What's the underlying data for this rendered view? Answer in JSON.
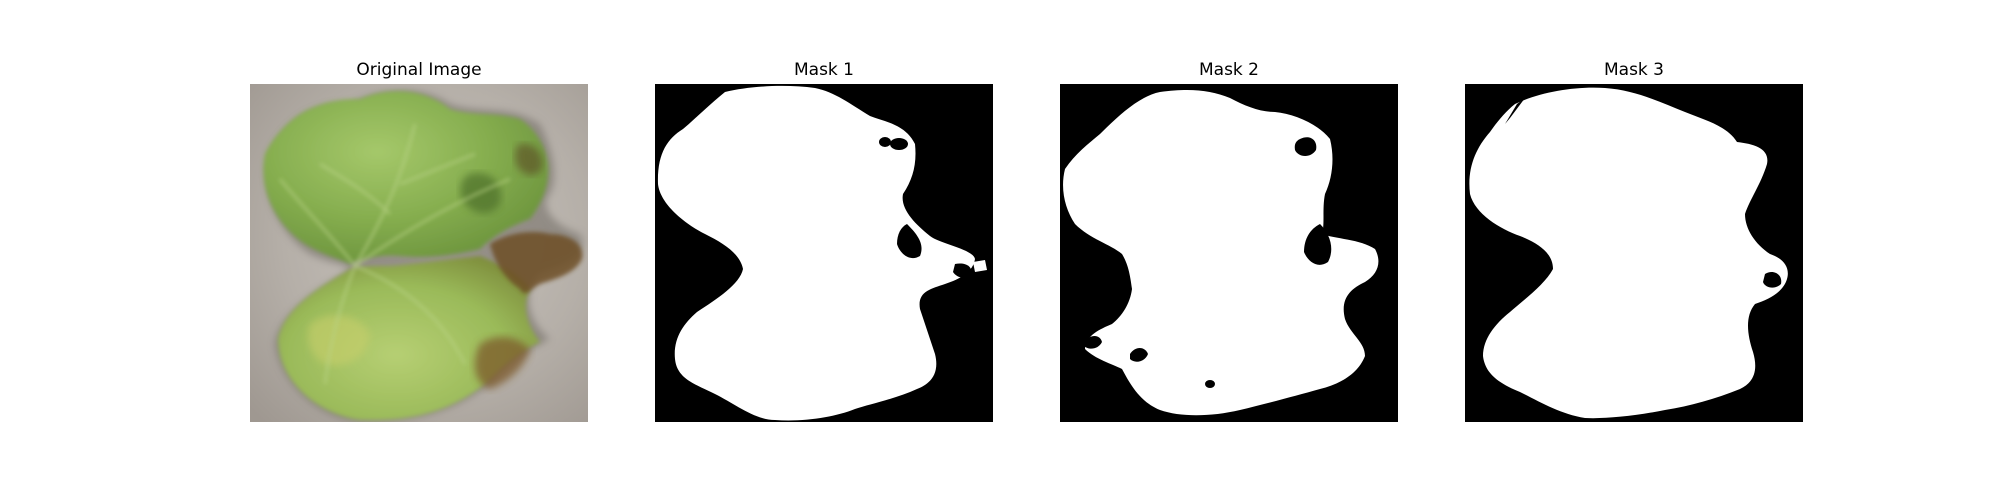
{
  "figure": {
    "panels": [
      {
        "title": "Original Image",
        "kind": "photo",
        "subject": "leaf-image"
      },
      {
        "title": "Mask 1",
        "kind": "mask",
        "variant": 1
      },
      {
        "title": "Mask 2",
        "kind": "mask",
        "variant": 2
      },
      {
        "title": "Mask 3",
        "kind": "mask",
        "variant": 3
      }
    ]
  },
  "colors": {
    "background": "#ffffff",
    "mask_background": "#000000",
    "mask_foreground": "#ffffff",
    "leaf_light": "#a8c86a",
    "leaf_mid": "#7fa84a",
    "leaf_dark": "#5d8a35",
    "leaf_brown": "#7a5a2a",
    "surface_gray": "#b8b2ac"
  }
}
